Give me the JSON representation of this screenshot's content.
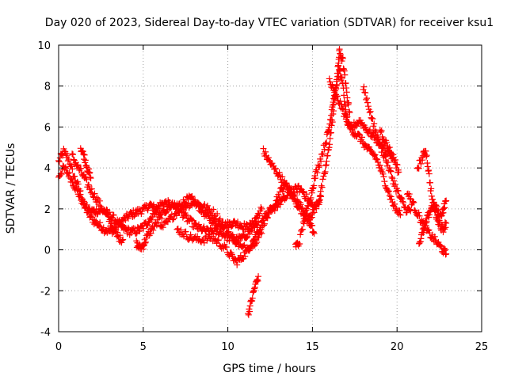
{
  "chart_data": {
    "type": "scatter",
    "title": "Day 020 of 2023, Sidereal Day-to-day VTEC variation (SDTVAR) for receiver ksu1",
    "xlabel": "GPS time / hours",
    "ylabel": "SDTVAR / TECUs",
    "xlim": [
      0,
      25
    ],
    "ylim": [
      -4,
      10
    ],
    "x_ticks": [
      "0",
      "5",
      "10",
      "15",
      "20",
      "25"
    ],
    "y_ticks": [
      "-4",
      "-2",
      "0",
      "2",
      "4",
      "6",
      "8",
      "10"
    ],
    "grid": true,
    "marker": "+",
    "series": [
      {
        "name": "SDTVAR",
        "color": "#ff0000",
        "traces": [
          [
            [
              0.0,
              4.3
            ],
            [
              0.3,
              4.8
            ],
            [
              0.6,
              4.4
            ],
            [
              0.9,
              3.6
            ],
            [
              1.2,
              3.0
            ],
            [
              1.5,
              2.2
            ],
            [
              1.8,
              1.7
            ],
            [
              2.1,
              1.4
            ],
            [
              2.4,
              1.2
            ],
            [
              2.7,
              1.0
            ],
            [
              3.0,
              0.9
            ],
            [
              3.3,
              1.0
            ],
            [
              3.6,
              1.3
            ],
            [
              3.9,
              1.5
            ],
            [
              4.2,
              1.7
            ],
            [
              4.5,
              1.8
            ],
            [
              4.8,
              1.9
            ],
            [
              5.1,
              2.0
            ],
            [
              5.4,
              2.2
            ],
            [
              5.7,
              2.0
            ],
            [
              6.0,
              1.7
            ]
          ],
          [
            [
              0.0,
              3.6
            ],
            [
              0.3,
              4.0
            ],
            [
              0.6,
              3.7
            ],
            [
              0.9,
              3.2
            ],
            [
              1.2,
              2.7
            ],
            [
              1.5,
              2.2
            ],
            [
              1.8,
              1.9
            ],
            [
              2.1,
              1.9
            ],
            [
              2.4,
              1.9
            ],
            [
              2.7,
              1.9
            ],
            [
              3.0,
              1.7
            ],
            [
              3.3,
              1.5
            ],
            [
              3.6,
              1.2
            ],
            [
              3.9,
              1.0
            ],
            [
              4.2,
              0.9
            ],
            [
              4.5,
              0.9
            ],
            [
              4.8,
              1.0
            ],
            [
              5.1,
              1.2
            ],
            [
              5.4,
              1.5
            ],
            [
              5.7,
              1.9
            ],
            [
              6.0,
              2.2
            ],
            [
              6.3,
              2.3
            ],
            [
              6.6,
              2.2
            ],
            [
              6.9,
              2.1
            ],
            [
              7.2,
              2.2
            ],
            [
              7.5,
              2.4
            ],
            [
              7.8,
              2.5
            ],
            [
              8.1,
              2.3
            ],
            [
              8.4,
              2.0
            ],
            [
              8.7,
              1.7
            ],
            [
              9.0,
              1.5
            ],
            [
              9.3,
              1.3
            ],
            [
              9.6,
              1.2
            ],
            [
              9.9,
              1.2
            ],
            [
              10.2,
              1.3
            ],
            [
              10.5,
              1.3
            ],
            [
              10.8,
              1.2
            ],
            [
              11.1,
              1.1
            ],
            [
              11.4,
              1.2
            ],
            [
              11.7,
              1.6
            ],
            [
              12.0,
              2.0
            ]
          ],
          [
            [
              0.8,
              4.6
            ],
            [
              1.1,
              4.1
            ],
            [
              1.4,
              3.7
            ],
            [
              1.7,
              3.2
            ],
            [
              2.0,
              2.8
            ],
            [
              2.3,
              2.4
            ],
            [
              2.6,
              2.0
            ],
            [
              2.9,
              1.6
            ],
            [
              3.2,
              1.1
            ],
            [
              3.5,
              0.6
            ],
            [
              3.8,
              0.5
            ]
          ],
          [
            [
              1.3,
              5.0
            ],
            [
              1.5,
              4.6
            ],
            [
              1.7,
              4.0
            ],
            [
              1.9,
              3.5
            ]
          ],
          [
            [
              4.6,
              0.3
            ],
            [
              4.8,
              0.1
            ],
            [
              5.0,
              0.2
            ],
            [
              5.2,
              0.6
            ],
            [
              5.5,
              1.0
            ],
            [
              5.8,
              1.3
            ],
            [
              6.1,
              1.7
            ],
            [
              6.4,
              2.0
            ],
            [
              6.7,
              2.2
            ],
            [
              7.0,
              2.1
            ],
            [
              7.3,
              1.8
            ],
            [
              7.6,
              1.5
            ],
            [
              7.9,
              1.3
            ],
            [
              8.2,
              1.1
            ],
            [
              8.5,
              1.0
            ],
            [
              8.8,
              0.9
            ],
            [
              9.1,
              0.9
            ],
            [
              9.4,
              0.9
            ],
            [
              9.7,
              0.8
            ],
            [
              10.0,
              0.6
            ],
            [
              10.3,
              0.5
            ],
            [
              10.6,
              0.5
            ],
            [
              10.9,
              0.6
            ],
            [
              11.2,
              0.8
            ],
            [
              11.5,
              1.1
            ],
            [
              11.8,
              1.4
            ]
          ],
          [
            [
              6.0,
              1.0
            ],
            [
              6.4,
              1.3
            ],
            [
              6.8,
              1.7
            ],
            [
              7.2,
              2.0
            ],
            [
              7.6,
              2.2
            ],
            [
              8.0,
              2.3
            ],
            [
              8.4,
              2.2
            ],
            [
              8.8,
              2.0
            ],
            [
              9.2,
              1.8
            ],
            [
              9.6,
              1.4
            ],
            [
              10.0,
              0.9
            ],
            [
              10.4,
              0.5
            ],
            [
              10.8,
              0.1
            ],
            [
              11.2,
              0.1
            ],
            [
              11.6,
              0.4
            ],
            [
              12.0,
              0.8
            ]
          ],
          [
            [
              7.0,
              1.0
            ],
            [
              7.4,
              0.8
            ],
            [
              7.8,
              0.6
            ],
            [
              8.2,
              0.5
            ],
            [
              8.6,
              0.5
            ],
            [
              9.0,
              0.6
            ],
            [
              9.4,
              0.4
            ],
            [
              9.8,
              0.1
            ],
            [
              10.2,
              -0.3
            ],
            [
              10.5,
              -0.6
            ],
            [
              10.8,
              -0.4
            ],
            [
              11.1,
              -0.1
            ],
            [
              11.4,
              0.3
            ],
            [
              11.7,
              0.8
            ],
            [
              12.0,
              1.2
            ],
            [
              12.3,
              1.6
            ],
            [
              12.6,
              1.9
            ],
            [
              12.9,
              2.2
            ],
            [
              13.2,
              2.4
            ],
            [
              13.5,
              2.6
            ],
            [
              13.8,
              2.8
            ],
            [
              14.1,
              3.0
            ],
            [
              14.4,
              2.9
            ],
            [
              14.7,
              2.5
            ],
            [
              15.0,
              2.1
            ],
            [
              15.3,
              2.2
            ],
            [
              15.5,
              2.6
            ]
          ],
          [
            [
              11.2,
              -3.1
            ],
            [
              11.4,
              -2.5
            ],
            [
              11.6,
              -1.8
            ],
            [
              11.8,
              -1.3
            ]
          ],
          [
            [
              12.1,
              4.8
            ],
            [
              12.4,
              4.4
            ],
            [
              12.7,
              4.0
            ],
            [
              13.0,
              3.7
            ],
            [
              13.3,
              3.3
            ],
            [
              13.6,
              2.9
            ],
            [
              13.9,
              2.5
            ],
            [
              14.2,
              2.1
            ],
            [
              14.5,
              1.7
            ],
            [
              14.8,
              1.5
            ],
            [
              15.1,
              1.9
            ],
            [
              15.4,
              2.5
            ],
            [
              15.7,
              3.6
            ],
            [
              15.9,
              4.6
            ],
            [
              16.1,
              5.8
            ],
            [
              16.3,
              7.2
            ],
            [
              16.5,
              8.8
            ],
            [
              16.6,
              9.7
            ],
            [
              16.8,
              9.2
            ],
            [
              17.0,
              7.8
            ],
            [
              17.2,
              6.7
            ]
          ],
          [
            [
              12.0,
              1.5
            ],
            [
              12.3,
              1.7
            ],
            [
              12.6,
              2.0
            ],
            [
              12.9,
              2.5
            ],
            [
              13.2,
              3.0
            ],
            [
              13.5,
              3.2
            ],
            [
              13.8,
              2.8
            ],
            [
              14.1,
              2.4
            ],
            [
              14.4,
              2.0
            ],
            [
              14.7,
              1.6
            ],
            [
              14.9,
              1.2
            ],
            [
              15.1,
              0.8
            ]
          ],
          [
            [
              14.0,
              0.2
            ],
            [
              14.2,
              0.3
            ],
            [
              14.5,
              1.4
            ],
            [
              14.8,
              2.3
            ],
            [
              15.0,
              3.0
            ],
            [
              15.2,
              3.7
            ],
            [
              15.5,
              4.5
            ],
            [
              15.8,
              5.3
            ],
            [
              16.0,
              6.0
            ],
            [
              16.2,
              7.2
            ],
            [
              16.4,
              8.0
            ],
            [
              16.6,
              8.8
            ],
            [
              16.8,
              8.0
            ],
            [
              17.0,
              6.5
            ],
            [
              17.2,
              5.9
            ],
            [
              17.5,
              6.1
            ],
            [
              17.8,
              6.3
            ],
            [
              18.1,
              6.0
            ],
            [
              18.4,
              5.7
            ],
            [
              18.7,
              5.5
            ],
            [
              19.0,
              5.1
            ],
            [
              19.3,
              4.5
            ],
            [
              19.6,
              3.8
            ],
            [
              19.9,
              3.1
            ],
            [
              20.2,
              2.5
            ],
            [
              20.5,
              2.0
            ],
            [
              20.8,
              1.9
            ]
          ],
          [
            [
              16.0,
              8.3
            ],
            [
              16.3,
              7.6
            ],
            [
              16.6,
              7.2
            ],
            [
              16.9,
              6.6
            ],
            [
              17.2,
              6.0
            ],
            [
              17.5,
              5.7
            ],
            [
              17.8,
              5.5
            ],
            [
              18.1,
              5.1
            ],
            [
              18.4,
              4.8
            ],
            [
              18.7,
              4.6
            ],
            [
              19.0,
              4.0
            ],
            [
              19.3,
              3.3
            ],
            [
              19.6,
              2.6
            ],
            [
              19.9,
              2.0
            ],
            [
              20.2,
              1.7
            ]
          ],
          [
            [
              18.0,
              8.0
            ],
            [
              18.3,
              7.1
            ],
            [
              18.6,
              6.1
            ],
            [
              18.9,
              5.4
            ],
            [
              19.2,
              5.0
            ],
            [
              19.5,
              4.7
            ],
            [
              19.8,
              4.5
            ]
          ],
          [
            [
              19.0,
              5.9
            ],
            [
              19.3,
              5.3
            ],
            [
              19.6,
              4.8
            ],
            [
              19.9,
              4.3
            ],
            [
              20.1,
              3.8
            ]
          ],
          [
            [
              20.6,
              2.8
            ],
            [
              20.9,
              2.3
            ],
            [
              21.2,
              1.8
            ],
            [
              21.5,
              1.3
            ],
            [
              21.8,
              0.9
            ],
            [
              22.1,
              0.6
            ],
            [
              22.4,
              0.3
            ],
            [
              22.7,
              0.0
            ],
            [
              22.9,
              -0.2
            ]
          ],
          [
            [
              21.2,
              4.0
            ],
            [
              21.5,
              4.5
            ],
            [
              21.7,
              4.9
            ],
            [
              21.9,
              3.6
            ],
            [
              22.1,
              2.3
            ],
            [
              22.3,
              1.7
            ],
            [
              22.5,
              1.3
            ],
            [
              22.7,
              1.0
            ],
            [
              22.9,
              1.3
            ]
          ],
          [
            [
              21.3,
              0.3
            ],
            [
              21.5,
              0.8
            ],
            [
              21.7,
              1.3
            ],
            [
              21.9,
              1.8
            ],
            [
              22.1,
              2.2
            ],
            [
              22.3,
              2.1
            ],
            [
              22.5,
              1.6
            ],
            [
              22.7,
              1.9
            ],
            [
              22.9,
              2.4
            ]
          ]
        ]
      }
    ]
  }
}
